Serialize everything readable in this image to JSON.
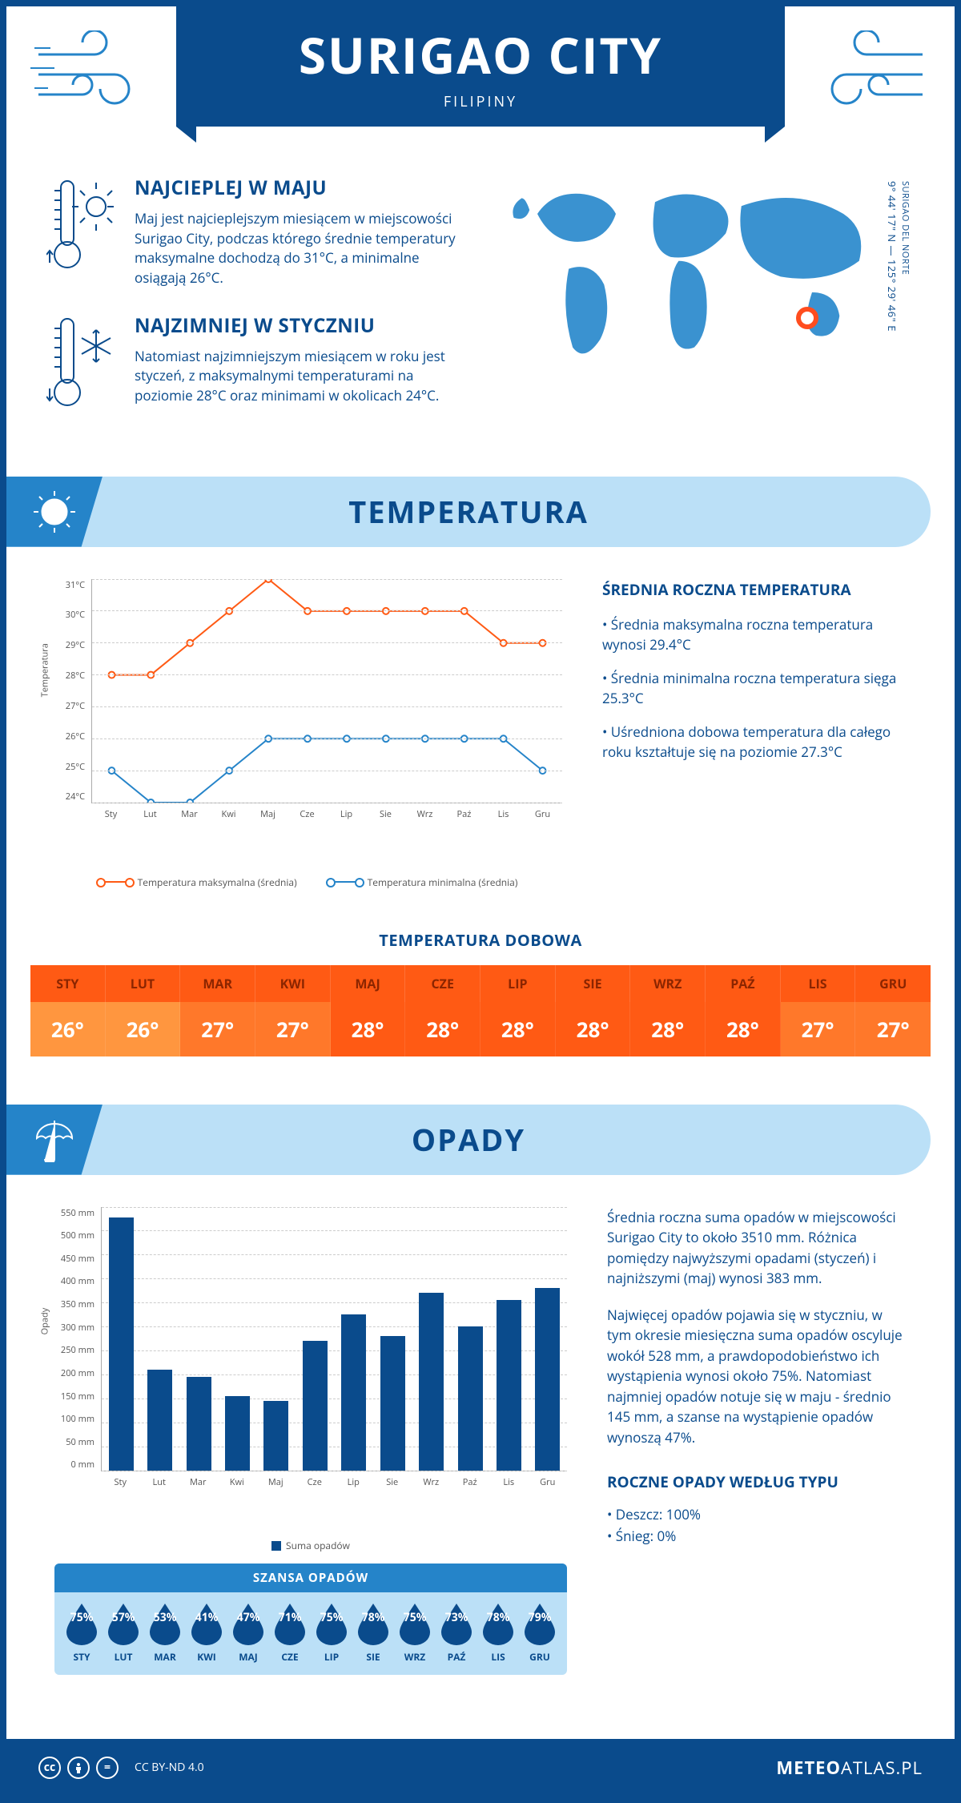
{
  "header": {
    "city": "SURIGAO CITY",
    "country": "FILIPINY"
  },
  "coords": {
    "region": "SURIGAO DEL NORTE",
    "text": "9° 44' 17\" N — 125° 29' 46\" E"
  },
  "intro": {
    "warm": {
      "title": "NAJCIEPLEJ W MAJU",
      "body": "Maj jest najcieplejszym miesiącem w miejscowości Surigao City, podczas którego średnie temperatury maksymalne dochodzą do 31°C, a minimalne osiągają 26°C."
    },
    "cold": {
      "title": "NAJZIMNIEJ W STYCZNIU",
      "body": "Natomiast najzimniejszym miesiącem w roku jest styczeń, z maksymalnymi temperaturami na poziomie 28°C oraz minimami w okolicach 24°C."
    }
  },
  "sections": {
    "temperature": "TEMPERATURA",
    "precipitation": "OPADY"
  },
  "months": [
    "Sty",
    "Lut",
    "Mar",
    "Kwi",
    "Maj",
    "Cze",
    "Lip",
    "Sie",
    "Wrz",
    "Paź",
    "Lis",
    "Gru"
  ],
  "months_upper": [
    "STY",
    "LUT",
    "MAR",
    "KWI",
    "MAJ",
    "CZE",
    "LIP",
    "SIE",
    "WRZ",
    "PAŹ",
    "LIS",
    "GRU"
  ],
  "temperature_chart": {
    "type": "line",
    "y_axis_title": "Temperatura",
    "y_ticks": [
      "31°C",
      "30°C",
      "29°C",
      "28°C",
      "27°C",
      "26°C",
      "25°C",
      "24°C"
    ],
    "ylim_min": 24,
    "ylim_max": 31,
    "series": {
      "max": {
        "label": "Temperatura maksymalna (średnia)",
        "color": "#ff5a14",
        "values": [
          28,
          28,
          29,
          30,
          31,
          30,
          30,
          30,
          30,
          30,
          29,
          29
        ]
      },
      "min": {
        "label": "Temperatura minimalna (średnia)",
        "color": "#2584c9",
        "values": [
          25,
          24,
          24,
          25,
          26,
          26,
          26,
          26,
          26,
          26,
          26,
          25
        ]
      }
    },
    "grid_color": "#cccccc",
    "marker_fill": "#ffffff",
    "line_width": 2,
    "marker_radius": 4
  },
  "temperature_side": {
    "heading": "ŚREDNIA ROCZNA TEMPERATURA",
    "bullets": [
      "• Średnia maksymalna roczna temperatura wynosi 29.4°C",
      "• Średnia minimalna roczna temperatura sięga 25.3°C",
      "• Uśredniona dobowa temperatura dla całego roku kształtuje się na poziomie 27.3°C"
    ]
  },
  "daily": {
    "title": "TEMPERATURA DOBOWA",
    "header_bg": "#ff5a14",
    "header_color": "#8b2500",
    "value_color": "#ffffff",
    "gradient_start": "#ff963f",
    "gradient_end": "#ff5a14",
    "values": [
      "26°",
      "26°",
      "27°",
      "27°",
      "28°",
      "28°",
      "28°",
      "28°",
      "28°",
      "28°",
      "27°",
      "27°"
    ]
  },
  "precip_chart": {
    "type": "bar",
    "y_axis_title": "Opady",
    "y_ticks": [
      "550 mm",
      "500 mm",
      "450 mm",
      "400 mm",
      "350 mm",
      "300 mm",
      "250 mm",
      "200 mm",
      "150 mm",
      "100 mm",
      "50 mm",
      "0 mm"
    ],
    "ylim_max": 550,
    "bar_color": "#0a4b8c",
    "values": [
      528,
      210,
      195,
      155,
      145,
      270,
      325,
      280,
      370,
      300,
      355,
      380
    ],
    "legend": "Suma opadów"
  },
  "precip_side": {
    "para1": "Średnia roczna suma opadów w miejscowości Surigao City to około 3510 mm. Różnica pomiędzy najwyższymi opadami (styczeń) i najniższymi (maj) wynosi 383 mm.",
    "para2": "Najwięcej opadów pojawia się w styczniu, w tym okresie miesięczna suma opadów oscyluje wokół 528 mm, a prawdopodobieństwo ich wystąpienia wynosi około 75%. Natomiast najmniej opadów notuje się w maju - średnio 145 mm, a szanse na wystąpienie opadów wynoszą 47%.",
    "heading": "ROCZNE OPADY WEDŁUG TYPU",
    "rain": "• Deszcz: 100%",
    "snow": "• Śnieg: 0%"
  },
  "chance": {
    "title": "SZANSA OPADÓW",
    "bg": "#bbe0f7",
    "title_bg": "#2584c9",
    "drop_color": "#0a4b8c",
    "values": [
      "75%",
      "57%",
      "53%",
      "41%",
      "47%",
      "71%",
      "75%",
      "78%",
      "75%",
      "73%",
      "78%",
      "79%"
    ]
  },
  "footer": {
    "license": "CC BY-ND 4.0",
    "brand_bold": "METEO",
    "brand_rest": "ATLAS.PL"
  },
  "colors": {
    "primary": "#0a4b8c",
    "accent": "#2584c9",
    "light": "#bbe0f7",
    "orange": "#ff5a14",
    "map": "#3a92d0",
    "marker": "#ff4d1f"
  }
}
